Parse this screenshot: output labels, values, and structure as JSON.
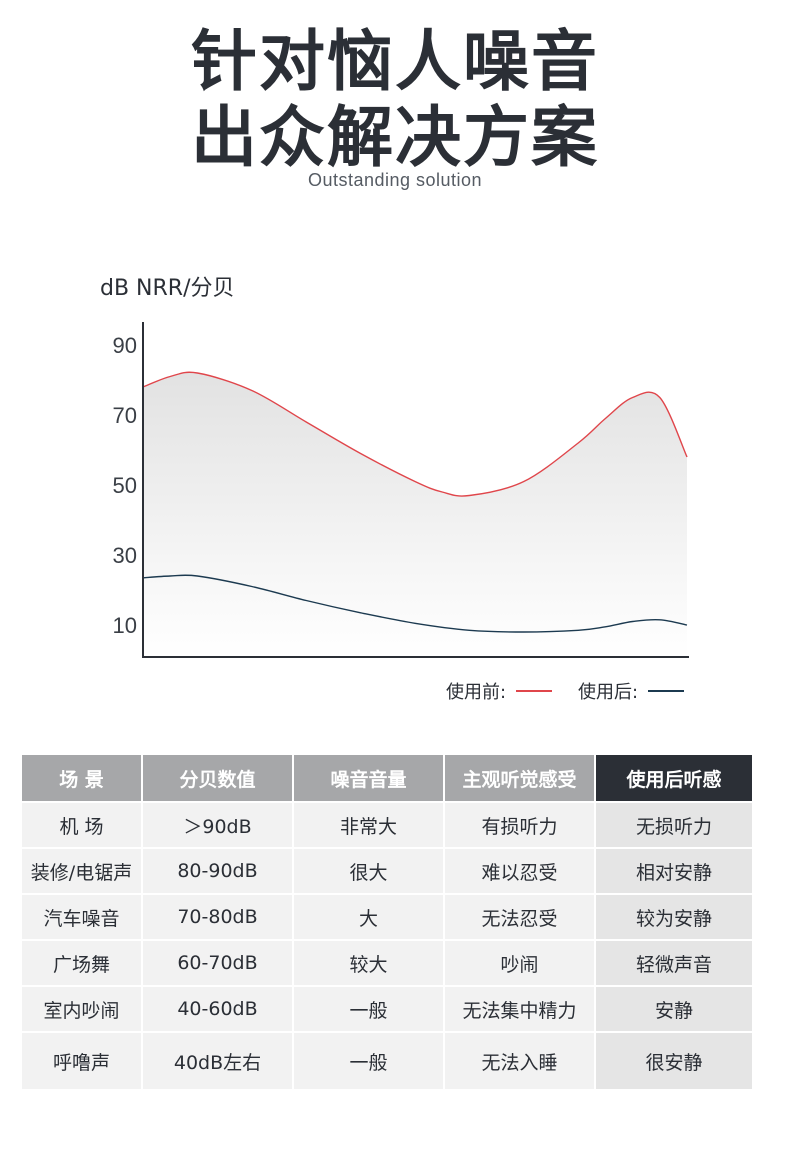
{
  "header": {
    "title_line1": "针对恼人噪音",
    "title_line2": "出众解决方案",
    "subtitle": "Outstanding solution"
  },
  "chart_data": {
    "type": "area",
    "ylabel": "dB NRR/分贝",
    "yticks": [
      90,
      70,
      50,
      30,
      10
    ],
    "ylim": [
      0,
      99
    ],
    "xlim": [
      0,
      1
    ],
    "grid": false,
    "series": [
      {
        "name": "使用前:",
        "color": "#e0464b",
        "x": [
          0,
          0.05,
          0.1,
          0.2,
          0.3,
          0.4,
          0.5,
          0.55,
          0.6,
          0.7,
          0.8,
          0.85,
          0.9,
          0.95,
          1.0
        ],
        "values": [
          78,
          81,
          82,
          77,
          68,
          59,
          51,
          48,
          47,
          51,
          62,
          69,
          75,
          75,
          58
        ]
      },
      {
        "name": "使用后:",
        "color": "#1c3a50",
        "x": [
          0,
          0.05,
          0.1,
          0.2,
          0.3,
          0.4,
          0.5,
          0.6,
          0.7,
          0.8,
          0.85,
          0.9,
          0.95,
          1.0
        ],
        "values": [
          23.5,
          24,
          24,
          21,
          17,
          13.5,
          10.5,
          8.5,
          8,
          8.5,
          9.5,
          11,
          11.5,
          10
        ]
      }
    ]
  },
  "legend": {
    "before_label": "使用前:",
    "after_label": "使用后:",
    "before_color": "#e0464b",
    "after_color": "#1c3a50"
  },
  "table": {
    "headers": [
      "场  景",
      "分贝数值",
      "噪音音量",
      "主观听觉感受",
      "使用后听感"
    ],
    "rows": [
      [
        "机  场",
        "＞90dB",
        "非常大",
        "有损听力",
        "无损听力"
      ],
      [
        "装修/电锯声",
        "80-90dB",
        "很大",
        "难以忍受",
        "相对安静"
      ],
      [
        "汽车噪音",
        "70-80dB",
        "大",
        "无法忍受",
        "较为安静"
      ],
      [
        "广场舞",
        "60-70dB",
        "较大",
        "吵闹",
        "轻微声音"
      ],
      [
        "室内吵闹",
        "40-60dB",
        "一般",
        "无法集中精力",
        "安静"
      ],
      [
        "呼噜声",
        "40dB左右",
        "一般",
        "无法入睡",
        "很安静"
      ]
    ]
  }
}
